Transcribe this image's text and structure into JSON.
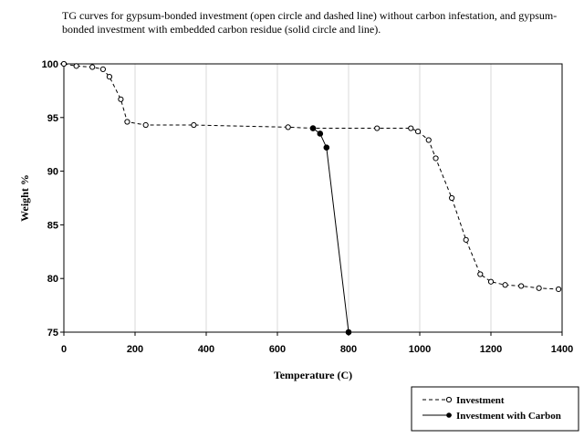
{
  "caption": "TG curves for gypsum-bonded investment (open circle and dashed line) without carbon infestation, and gypsum-bonded investment with embedded carbon residue (solid circle and line).",
  "chart_data": {
    "type": "line",
    "title": "TG curves for gypsum-bonded investment (open circle and dashed line) without carbon infestation, and gypsum-bonded investment with embedded carbon residue (solid circle and line).",
    "xlabel": "Temperature (C)",
    "ylabel": "Weight %",
    "xlim": [
      0,
      1400
    ],
    "ylim": [
      75,
      100
    ],
    "xticks": [
      0,
      200,
      400,
      600,
      800,
      1000,
      1200,
      1400
    ],
    "yticks": [
      75,
      80,
      85,
      90,
      95,
      100
    ],
    "grid": "vertical",
    "legend_position": "below-right",
    "series": [
      {
        "name": "Investment",
        "style": "dashed",
        "marker": "open-circle",
        "color": "#000000",
        "x": [
          0,
          35,
          80,
          110,
          128,
          160,
          178,
          230,
          365,
          630,
          700,
          880,
          975,
          995,
          1025,
          1045,
          1090,
          1130,
          1170,
          1200,
          1240,
          1285,
          1335,
          1390
        ],
        "y": [
          100,
          99.8,
          99.7,
          99.5,
          98.8,
          96.7,
          94.6,
          94.3,
          94.3,
          94.1,
          94.0,
          94.0,
          94.0,
          93.7,
          92.9,
          91.2,
          87.5,
          83.6,
          80.4,
          79.7,
          79.4,
          79.3,
          79.1,
          79.0
        ]
      },
      {
        "name": "Investment with Carbon",
        "style": "solid",
        "marker": "filled-circle",
        "color": "#000000",
        "x": [
          700,
          720,
          738,
          800
        ],
        "y": [
          94.0,
          93.5,
          92.2,
          75.0
        ]
      }
    ]
  }
}
